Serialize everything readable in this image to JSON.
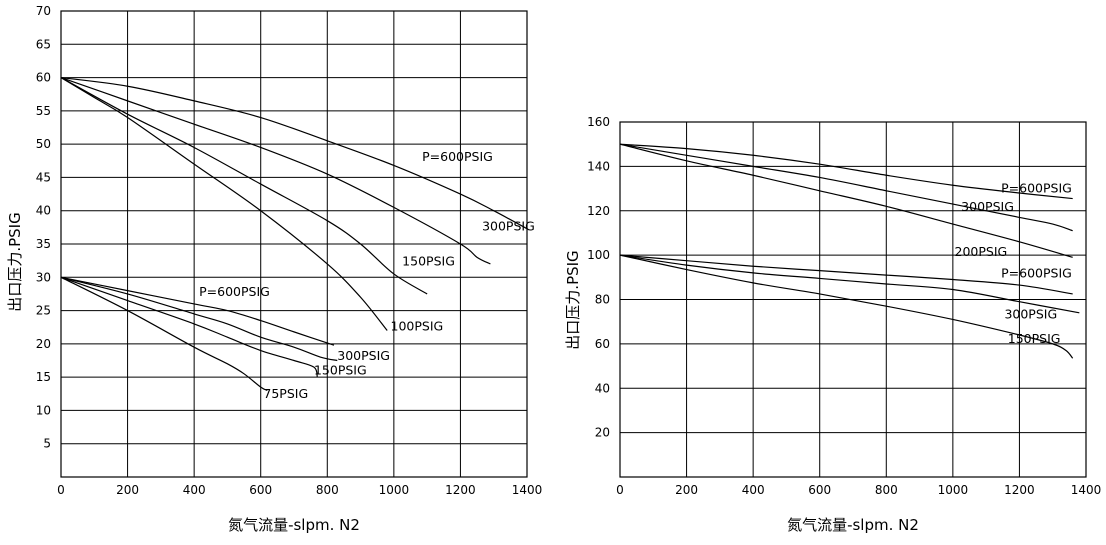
{
  "chart_data": [
    {
      "type": "line",
      "xlabel": "氮气流量-slpm. N2",
      "ylabel": "出口压力.PSIG",
      "xlim": [
        0,
        1400
      ],
      "ylim": [
        0,
        70
      ],
      "x_ticks": [
        0,
        200,
        400,
        600,
        800,
        1000,
        1200,
        1400
      ],
      "y_ticks": [
        5,
        10,
        15,
        20,
        25,
        30,
        35,
        40,
        45,
        50,
        55,
        60,
        65,
        70
      ],
      "grid": true,
      "series": [
        {
          "name": "P=600PSIG",
          "x": [
            0,
            200,
            400,
            600,
            800,
            1000,
            1200,
            1300,
            1400
          ],
          "y": [
            60,
            58.7,
            56.5,
            54,
            50.5,
            46.8,
            42.5,
            40,
            37.3
          ]
        },
        {
          "name": "300PSIG",
          "x": [
            0,
            200,
            400,
            600,
            800,
            1000,
            1200,
            1250,
            1290
          ],
          "y": [
            60,
            56.5,
            53,
            49.5,
            45.5,
            40.5,
            35,
            33,
            32
          ]
        },
        {
          "name": "150PSIG",
          "x": [
            0,
            200,
            400,
            600,
            800,
            900,
            1000,
            1100
          ],
          "y": [
            60,
            54.5,
            49.5,
            44,
            38.5,
            35,
            30.5,
            27.5
          ]
        },
        {
          "name": "100PSIG",
          "x": [
            0,
            100,
            200,
            400,
            600,
            800,
            900,
            980
          ],
          "y": [
            60,
            57,
            54,
            47,
            40,
            32,
            27,
            22
          ]
        },
        {
          "name": "P=600PSIG",
          "x": [
            0,
            200,
            400,
            500,
            600,
            700,
            820
          ],
          "y": [
            30,
            28,
            26,
            25,
            23.5,
            21.8,
            19.8
          ]
        },
        {
          "name": "300PSIG",
          "x": [
            0,
            200,
            400,
            500,
            600,
            700,
            780,
            830
          ],
          "y": [
            30,
            27.5,
            24.5,
            23,
            21,
            19.5,
            18,
            17.5
          ]
        },
        {
          "name": "150PSIG",
          "x": [
            0,
            200,
            400,
            500,
            600,
            700,
            760,
            770
          ],
          "y": [
            30,
            26.5,
            23,
            21,
            19,
            17.5,
            16.5,
            15
          ]
        },
        {
          "name": "75PSIG",
          "x": [
            0,
            200,
            400,
            500,
            550,
            600,
            620
          ],
          "y": [
            30,
            25,
            19.5,
            17,
            15.5,
            13.5,
            13
          ]
        }
      ],
      "labels": [
        {
          "text": "P=600PSIG",
          "x": 1085,
          "y": 47.5
        },
        {
          "text": "300PSIG",
          "x": 1265,
          "y": 37
        },
        {
          "text": "150PSIG",
          "x": 1025,
          "y": 31.8
        },
        {
          "text": "100PSIG",
          "x": 990,
          "y": 22
        },
        {
          "text": "P=600PSIG",
          "x": 415,
          "y": 27.2
        },
        {
          "text": "300PSIG",
          "x": 830,
          "y": 17.6
        },
        {
          "text": "150PSIG",
          "x": 760,
          "y": 15.4
        },
        {
          "text": "75PSIG",
          "x": 608,
          "y": 11.9
        }
      ]
    },
    {
      "type": "line",
      "xlabel": "氮气流量-slpm. N2",
      "ylabel": "出口压力.PSIG",
      "xlim": [
        0,
        1400
      ],
      "ylim": [
        0,
        160
      ],
      "x_ticks": [
        0,
        200,
        400,
        600,
        800,
        1000,
        1200,
        1400
      ],
      "y_ticks": [
        20,
        40,
        60,
        80,
        100,
        120,
        140,
        160
      ],
      "grid": true,
      "series": [
        {
          "name": "P=600PSIG",
          "x": [
            0,
            200,
            400,
            600,
            800,
            1000,
            1200,
            1360
          ],
          "y": [
            150,
            148,
            145,
            141,
            136,
            131.5,
            128,
            125.5
          ]
        },
        {
          "name": "300PSIG",
          "x": [
            0,
            200,
            400,
            600,
            800,
            1000,
            1200,
            1300,
            1360
          ],
          "y": [
            150,
            145,
            140,
            135,
            129,
            123,
            117,
            114,
            111
          ]
        },
        {
          "name": "200PSIG",
          "x": [
            0,
            200,
            400,
            600,
            800,
            1000,
            1200,
            1360
          ],
          "y": [
            150,
            142.5,
            136,
            129,
            122,
            114,
            106,
            99
          ]
        },
        {
          "name": "P=600PSIG",
          "x": [
            0,
            200,
            400,
            600,
            800,
            1000,
            1200,
            1360
          ],
          "y": [
            100,
            97.5,
            95,
            93,
            91,
            89,
            86.5,
            82.5
          ]
        },
        {
          "name": "300PSIG",
          "x": [
            0,
            200,
            400,
            600,
            800,
            1000,
            1200,
            1380
          ],
          "y": [
            100,
            95.5,
            92,
            89.5,
            87,
            84.5,
            79,
            74
          ]
        },
        {
          "name": "150PSIG",
          "x": [
            0,
            200,
            400,
            600,
            800,
            1000,
            1200,
            1300,
            1340,
            1360
          ],
          "y": [
            100,
            93.5,
            87.5,
            82.5,
            77,
            71,
            64,
            60,
            57,
            53.5
          ]
        }
      ],
      "labels": [
        {
          "text": "P=600PSIG",
          "x": 1145,
          "y": 128.2
        },
        {
          "text": "300PSIG",
          "x": 1025,
          "y": 120
        },
        {
          "text": "200PSIG",
          "x": 1005,
          "y": 99.5
        },
        {
          "text": "P=600PSIG",
          "x": 1145,
          "y": 90
        },
        {
          "text": "300PSIG",
          "x": 1155,
          "y": 71.5
        },
        {
          "text": "150PSIG",
          "x": 1165,
          "y": 60.5
        }
      ]
    }
  ]
}
